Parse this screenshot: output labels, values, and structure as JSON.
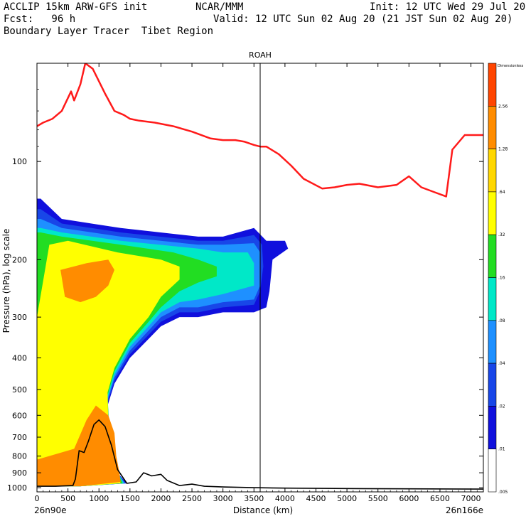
{
  "header": {
    "line1_left": "ACCLIP 15km ARW-GFS init",
    "line1_center": "NCAR/MMM",
    "line1_right": "Init: 12 UTC Wed 29 Jul 20",
    "line2_left": "Fcst:   96 h",
    "line2_right": "Valid: 12 UTC Sun 02 Aug 20 (21 JST Sun 02 Aug 20)",
    "line3_left": "Boundary Layer Tracer  Tibet Region"
  },
  "colors": {
    "tropopause": "#ff1a1a",
    "terrain": "#000000",
    "marker_line": "#000000"
  },
  "chart_data": {
    "type": "heatmap",
    "title": "ROAH",
    "xlabel": "Distance (km)",
    "ylabel": "Pressure (hPa), log scale",
    "y_scale": "log",
    "xlim": [
      0,
      7200
    ],
    "ylim": [
      1030,
      50
    ],
    "x_ticks": [
      "0",
      "500",
      "1000",
      "1500",
      "2000",
      "2500",
      "3000",
      "3500",
      "4000",
      "4500",
      "5000",
      "5500",
      "6000",
      "6500",
      "7000"
    ],
    "y_ticks": [
      "100",
      "200",
      "300",
      "400",
      "500",
      "600",
      "700",
      "800",
      "900",
      "1000"
    ],
    "x_endpoint_labels": [
      "26n90e",
      "26n166e"
    ],
    "marker_x_km": 3600,
    "colorbar": {
      "title": "Dimensionless",
      "levels": [
        "2.56",
        "1.28",
        ".64",
        ".32",
        ".16",
        ".08",
        ".04",
        ".02",
        ".01",
        ".005"
      ],
      "colors": [
        "#ff4500",
        "#ff8c00",
        "#ffd700",
        "#ffff00",
        "#22dd22",
        "#00e8c8",
        "#1e90ff",
        "#1846e8",
        "#1010dd",
        "#ffffff"
      ]
    },
    "contour_fills": [
      {
        "level": ".01",
        "color": "#1010dd",
        "points": [
          [
            60,
            130
          ],
          [
            400,
            150
          ],
          [
            1350,
            160
          ],
          [
            2600,
            170
          ],
          [
            3000,
            170
          ],
          [
            3500,
            160
          ],
          [
            3700,
            175
          ],
          [
            4000,
            175
          ],
          [
            4050,
            185
          ],
          [
            3800,
            200
          ],
          [
            3750,
            250
          ],
          [
            3700,
            280
          ],
          [
            3500,
            290
          ],
          [
            3000,
            290
          ],
          [
            2600,
            300
          ],
          [
            2300,
            300
          ],
          [
            2000,
            320
          ],
          [
            1800,
            350
          ],
          [
            1500,
            400
          ],
          [
            1250,
            480
          ],
          [
            1140,
            560
          ],
          [
            1160,
            640
          ],
          [
            1220,
            780
          ],
          [
            1300,
            900
          ],
          [
            1450,
            970
          ],
          [
            700,
            990
          ],
          [
            0,
            990
          ],
          [
            0,
            130
          ]
        ]
      },
      {
        "level": ".02",
        "color": "#1846e8",
        "points": [
          [
            60,
            140
          ],
          [
            400,
            155
          ],
          [
            1350,
            165
          ],
          [
            2600,
            175
          ],
          [
            3000,
            175
          ],
          [
            3500,
            168
          ],
          [
            3630,
            180
          ],
          [
            3650,
            210
          ],
          [
            3600,
            250
          ],
          [
            3500,
            275
          ],
          [
            3000,
            280
          ],
          [
            2600,
            290
          ],
          [
            2300,
            290
          ],
          [
            2000,
            310
          ],
          [
            1800,
            340
          ],
          [
            1500,
            390
          ],
          [
            1250,
            470
          ],
          [
            1140,
            550
          ],
          [
            1160,
            640
          ],
          [
            1220,
            780
          ],
          [
            1300,
            900
          ],
          [
            1430,
            970
          ],
          [
            700,
            990
          ],
          [
            0,
            990
          ],
          [
            0,
            140
          ]
        ]
      },
      {
        "level": ".04",
        "color": "#1e90ff",
        "points": [
          [
            60,
            150
          ],
          [
            400,
            160
          ],
          [
            1350,
            170
          ],
          [
            2600,
            180
          ],
          [
            3000,
            180
          ],
          [
            3500,
            178
          ],
          [
            3600,
            190
          ],
          [
            3600,
            240
          ],
          [
            3500,
            265
          ],
          [
            3000,
            270
          ],
          [
            2600,
            280
          ],
          [
            2300,
            280
          ],
          [
            2000,
            300
          ],
          [
            1800,
            330
          ],
          [
            1500,
            380
          ],
          [
            1250,
            460
          ],
          [
            1140,
            540
          ],
          [
            1160,
            640
          ],
          [
            1220,
            780
          ],
          [
            1300,
            900
          ],
          [
            1420,
            970
          ],
          [
            700,
            990
          ],
          [
            0,
            990
          ],
          [
            0,
            150
          ]
        ]
      },
      {
        "level": ".08",
        "color": "#00e8c8",
        "points": [
          [
            60,
            160
          ],
          [
            400,
            165
          ],
          [
            1350,
            175
          ],
          [
            2600,
            185
          ],
          [
            3000,
            190
          ],
          [
            3400,
            190
          ],
          [
            3500,
            205
          ],
          [
            3500,
            240
          ],
          [
            3000,
            255
          ],
          [
            2600,
            265
          ],
          [
            2300,
            270
          ],
          [
            2000,
            290
          ],
          [
            1800,
            320
          ],
          [
            1500,
            370
          ],
          [
            1250,
            450
          ],
          [
            1140,
            530
          ],
          [
            1160,
            640
          ],
          [
            1220,
            780
          ],
          [
            1300,
            900
          ],
          [
            1400,
            970
          ],
          [
            700,
            990
          ],
          [
            0,
            990
          ],
          [
            0,
            160
          ]
        ]
      },
      {
        "level": ".16",
        "color": "#22dd22",
        "points": [
          [
            60,
            165
          ],
          [
            400,
            170
          ],
          [
            1350,
            180
          ],
          [
            2200,
            190
          ],
          [
            2600,
            200
          ],
          [
            2900,
            210
          ],
          [
            2900,
            225
          ],
          [
            2600,
            235
          ],
          [
            2300,
            250
          ],
          [
            2000,
            280
          ],
          [
            1800,
            310
          ],
          [
            1500,
            360
          ],
          [
            1250,
            440
          ],
          [
            1140,
            520
          ],
          [
            1160,
            640
          ],
          [
            1220,
            780
          ],
          [
            1300,
            900
          ],
          [
            1380,
            970
          ],
          [
            700,
            990
          ],
          [
            0,
            990
          ],
          [
            0,
            165
          ]
        ]
      },
      {
        "level": ".32",
        "color": "#ffff00",
        "points": [
          [
            200,
            180
          ],
          [
            500,
            175
          ],
          [
            1300,
            190
          ],
          [
            2000,
            200
          ],
          [
            2300,
            210
          ],
          [
            2300,
            230
          ],
          [
            2000,
            260
          ],
          [
            1800,
            300
          ],
          [
            1500,
            350
          ],
          [
            1250,
            430
          ],
          [
            1140,
            510
          ],
          [
            1150,
            640
          ],
          [
            1200,
            780
          ],
          [
            1280,
            900
          ],
          [
            1350,
            970
          ],
          [
            700,
            990
          ],
          [
            0,
            990
          ],
          [
            0,
            300
          ],
          [
            200,
            180
          ]
        ]
      },
      {
        "level": ".64",
        "color": "#ff8c00",
        "points": [
          [
            0,
            820
          ],
          [
            600,
            760
          ],
          [
            800,
            620
          ],
          [
            950,
            560
          ],
          [
            1150,
            600
          ],
          [
            1250,
            680
          ],
          [
            1280,
            800
          ],
          [
            1330,
            900
          ],
          [
            1350,
            960
          ],
          [
            700,
            990
          ],
          [
            0,
            990
          ]
        ]
      },
      {
        "level": ".64",
        "color": "#ff8c00",
        "points": [
          [
            380,
            215
          ],
          [
            800,
            205
          ],
          [
            1150,
            200
          ],
          [
            1250,
            215
          ],
          [
            1150,
            240
          ],
          [
            950,
            260
          ],
          [
            700,
            270
          ],
          [
            450,
            260
          ]
        ]
      }
    ],
    "tropopause_hpa": [
      {
        "x": 0,
        "p": 78
      },
      {
        "x": 100,
        "p": 76
      },
      {
        "x": 250,
        "p": 74
      },
      {
        "x": 400,
        "p": 70
      },
      {
        "x": 550,
        "p": 61
      },
      {
        "x": 600,
        "p": 65
      },
      {
        "x": 700,
        "p": 58
      },
      {
        "x": 780,
        "p": 50
      },
      {
        "x": 900,
        "p": 52
      },
      {
        "x": 1100,
        "p": 62
      },
      {
        "x": 1250,
        "p": 70
      },
      {
        "x": 1400,
        "p": 72
      },
      {
        "x": 1500,
        "p": 74
      },
      {
        "x": 1650,
        "p": 75
      },
      {
        "x": 1900,
        "p": 76
      },
      {
        "x": 2200,
        "p": 78
      },
      {
        "x": 2500,
        "p": 81
      },
      {
        "x": 2800,
        "p": 85
      },
      {
        "x": 3000,
        "p": 86
      },
      {
        "x": 3200,
        "p": 86
      },
      {
        "x": 3350,
        "p": 87
      },
      {
        "x": 3500,
        "p": 89
      },
      {
        "x": 3600,
        "p": 90
      },
      {
        "x": 3700,
        "p": 90
      },
      {
        "x": 3900,
        "p": 95
      },
      {
        "x": 4100,
        "p": 103
      },
      {
        "x": 4300,
        "p": 113
      },
      {
        "x": 4600,
        "p": 121
      },
      {
        "x": 4800,
        "p": 120
      },
      {
        "x": 5000,
        "p": 118
      },
      {
        "x": 5200,
        "p": 117
      },
      {
        "x": 5500,
        "p": 120
      },
      {
        "x": 5800,
        "p": 118
      },
      {
        "x": 6000,
        "p": 111
      },
      {
        "x": 6200,
        "p": 120
      },
      {
        "x": 6400,
        "p": 124
      },
      {
        "x": 6600,
        "p": 128
      },
      {
        "x": 6700,
        "p": 92
      },
      {
        "x": 6900,
        "p": 83
      },
      {
        "x": 7200,
        "p": 83
      }
    ],
    "terrain_hpa": [
      {
        "x": 0,
        "p": 990
      },
      {
        "x": 300,
        "p": 990
      },
      {
        "x": 580,
        "p": 985
      },
      {
        "x": 620,
        "p": 940
      },
      {
        "x": 680,
        "p": 770
      },
      {
        "x": 760,
        "p": 780
      },
      {
        "x": 830,
        "p": 720
      },
      {
        "x": 920,
        "p": 640
      },
      {
        "x": 1000,
        "p": 620
      },
      {
        "x": 1100,
        "p": 650
      },
      {
        "x": 1200,
        "p": 740
      },
      {
        "x": 1300,
        "p": 880
      },
      {
        "x": 1450,
        "p": 970
      },
      {
        "x": 1600,
        "p": 960
      },
      {
        "x": 1720,
        "p": 900
      },
      {
        "x": 1850,
        "p": 920
      },
      {
        "x": 2000,
        "p": 910
      },
      {
        "x": 2100,
        "p": 950
      },
      {
        "x": 2300,
        "p": 985
      },
      {
        "x": 2500,
        "p": 975
      },
      {
        "x": 2700,
        "p": 990
      },
      {
        "x": 3000,
        "p": 995
      },
      {
        "x": 3500,
        "p": 1000
      },
      {
        "x": 4000,
        "p": 1003
      },
      {
        "x": 5000,
        "p": 1006
      },
      {
        "x": 6000,
        "p": 1008
      },
      {
        "x": 7200,
        "p": 1010
      }
    ]
  }
}
